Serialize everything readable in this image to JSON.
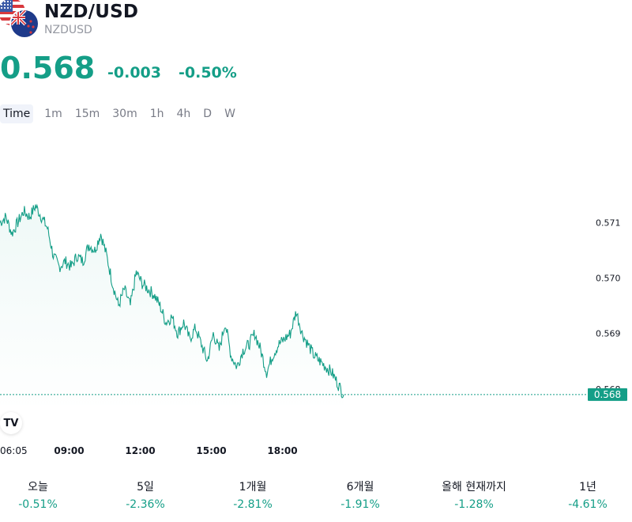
{
  "header": {
    "title": "NZD/USD",
    "subtitle": "NZDUSD",
    "price": "0.568",
    "change_abs": "-0.003",
    "change_pct": "-0.50%"
  },
  "tabs": [
    {
      "label": "Time",
      "active": true
    },
    {
      "label": "1m"
    },
    {
      "label": "15m"
    },
    {
      "label": "30m"
    },
    {
      "label": "1h"
    },
    {
      "label": "4h"
    },
    {
      "label": "D"
    },
    {
      "label": "W"
    }
  ],
  "chart_logo": "TV",
  "colors": {
    "accent": "#149e87",
    "text": "#131722",
    "muted": "#787b86"
  },
  "chart_data": {
    "type": "area",
    "x_ticks": [
      "06:05",
      "09:00",
      "12:00",
      "15:00",
      "18:00"
    ],
    "y_ticks": [
      "0.571",
      "0.570",
      "0.569",
      "0.568"
    ],
    "current_value_label": "0.568",
    "ylim": [
      0.5676,
      0.5723
    ],
    "x_start": "06:05",
    "series": [
      {
        "x": [
          "06:05",
          "06:20",
          "06:35",
          "06:50",
          "07:05",
          "07:20",
          "07:35",
          "07:50",
          "08:05",
          "08:20",
          "08:35",
          "08:50",
          "09:05",
          "09:20",
          "09:35",
          "09:50",
          "10:05",
          "10:20",
          "10:35",
          "10:50",
          "11:05",
          "11:20",
          "11:35",
          "11:50",
          "12:05",
          "12:20",
          "12:35",
          "12:50",
          "13:05",
          "13:20",
          "13:35",
          "13:50",
          "14:05",
          "14:20",
          "14:35",
          "14:50",
          "15:05",
          "15:20",
          "15:35",
          "15:50",
          "16:05",
          "16:20",
          "16:35",
          "16:50",
          "17:05",
          "17:20",
          "17:35",
          "17:50",
          "18:05",
          "18:20",
          "18:35",
          "18:50",
          "19:05",
          "19:20",
          "19:35",
          "19:50",
          "20:05",
          "20:20",
          "20:35"
        ],
        "values": [
          0.571,
          0.5711,
          0.5708,
          0.571,
          0.5712,
          0.5711,
          0.5713,
          0.5711,
          0.5709,
          0.5704,
          0.5702,
          0.5703,
          0.5702,
          0.5704,
          0.5703,
          0.5706,
          0.5705,
          0.5708,
          0.5704,
          0.5699,
          0.5695,
          0.5698,
          0.5695,
          0.5701,
          0.5699,
          0.5698,
          0.5697,
          0.5695,
          0.5692,
          0.5693,
          0.569,
          0.5692,
          0.5689,
          0.5691,
          0.5688,
          0.5685,
          0.569,
          0.5687,
          0.5692,
          0.5686,
          0.5684,
          0.5687,
          0.5688,
          0.569,
          0.5687,
          0.5683,
          0.5686,
          0.5688,
          0.5689,
          0.569,
          0.5694,
          0.569,
          0.5688,
          0.5686,
          0.5685,
          0.5684,
          0.5683,
          0.5681,
          0.5679
        ]
      }
    ]
  },
  "periods": [
    {
      "label": "오늘",
      "value": "-0.51%"
    },
    {
      "label": "5일",
      "value": "-2.36%"
    },
    {
      "label": "1개월",
      "value": "-2.81%"
    },
    {
      "label": "6개월",
      "value": "-1.91%"
    },
    {
      "label": "올해 현재까지",
      "value": "-1.28%"
    },
    {
      "label": "1년",
      "value": "-4.61%"
    }
  ]
}
